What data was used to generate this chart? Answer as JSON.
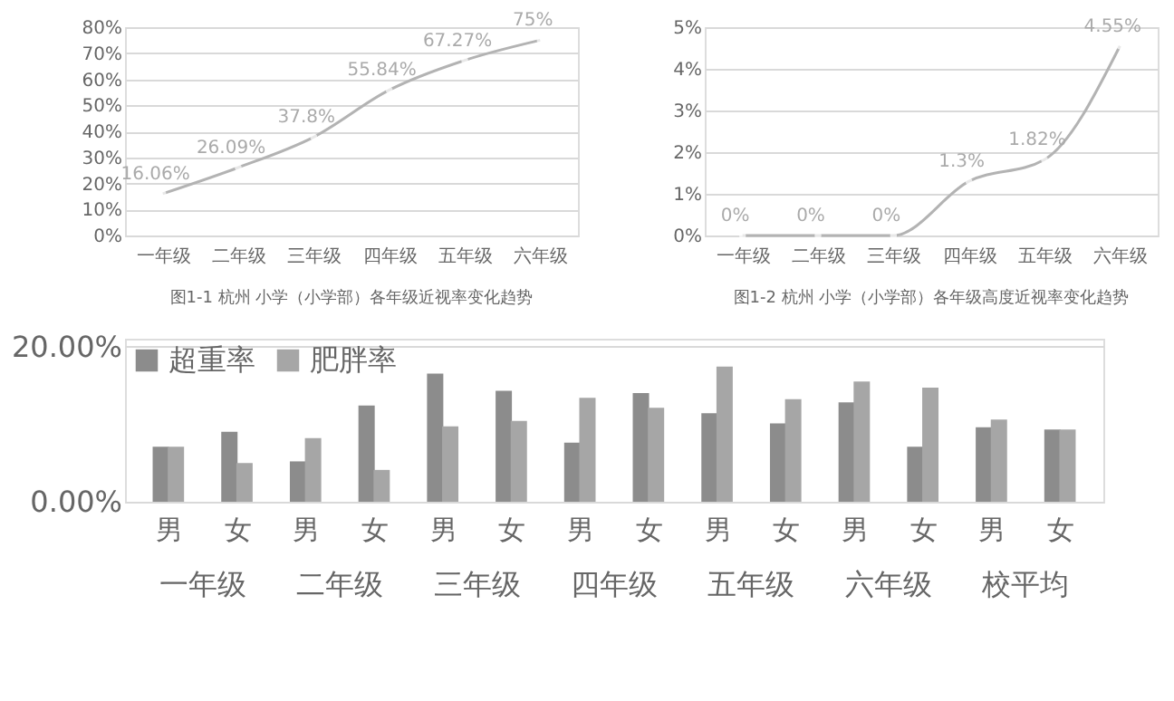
{
  "chart_data": [
    {
      "type": "line",
      "title": "图1-1 杭州 小学（小学部）各年级近视率变化趋势",
      "categories": [
        "一年级",
        "二年级",
        "三年级",
        "四年级",
        "五年级",
        "六年级"
      ],
      "series": [
        {
          "color": "#b3b3b3",
          "values": [
            16.06,
            26.09,
            37.8,
            55.84,
            67.27,
            75
          ],
          "value_labels": [
            "16.06%",
            "26.09%",
            "37.8%",
            "55.84%",
            "67.27%",
            "75%"
          ]
        }
      ],
      "ylim": [
        0,
        80
      ],
      "yticks": [
        {
          "value": 0,
          "label": "0%"
        },
        {
          "value": 10,
          "label": "10%"
        },
        {
          "value": 20,
          "label": "20%"
        },
        {
          "value": 30,
          "label": "30%"
        },
        {
          "value": 40,
          "label": "40%"
        },
        {
          "value": 50,
          "label": "50%"
        },
        {
          "value": 60,
          "label": "60%"
        },
        {
          "value": 70,
          "label": "70%"
        },
        {
          "value": 80,
          "label": "80%"
        }
      ],
      "grid": "y",
      "marker": "circle"
    },
    {
      "type": "line",
      "title": "图1-2 杭州 小学（小学部）各年级高度近视率变化趋势",
      "categories": [
        "一年级",
        "二年级",
        "三年级",
        "四年级",
        "五年级",
        "六年级"
      ],
      "series": [
        {
          "color": "#b3b3b3",
          "values": [
            0,
            0,
            0,
            1.3,
            1.82,
            4.55
          ],
          "value_labels": [
            "0%",
            "0%",
            "0%",
            "1.3%",
            "1.82%",
            "4.55%"
          ]
        }
      ],
      "ylim": [
        0,
        5
      ],
      "yticks": [
        {
          "value": 0,
          "label": "0%"
        },
        {
          "value": 1,
          "label": "1%"
        },
        {
          "value": 2,
          "label": "2%"
        },
        {
          "value": 3,
          "label": "3%"
        },
        {
          "value": 4,
          "label": "4%"
        },
        {
          "value": 5,
          "label": "5%"
        }
      ],
      "grid": "y",
      "marker": "circle"
    },
    {
      "type": "bar",
      "categories": [
        "男",
        "女",
        "男",
        "女",
        "男",
        "女",
        "男",
        "女",
        "男",
        "女",
        "男",
        "女",
        "男",
        "女"
      ],
      "annotations": [
        "一年级",
        "二年级",
        "三年级",
        "四年级",
        "五年级",
        "六年级",
        "校平均"
      ],
      "series": [
        {
          "name": "超重率",
          "color": "#8c8c8c",
          "values": [
            7.1,
            9.0,
            5.2,
            12.4,
            16.5,
            14.3,
            7.6,
            14.0,
            11.4,
            10.1,
            12.8,
            7.1,
            9.6,
            9.3
          ]
        },
        {
          "name": "肥胖率",
          "color": "#a6a6a6",
          "values": [
            7.1,
            5.0,
            8.2,
            4.1,
            9.7,
            10.4,
            13.4,
            12.1,
            17.4,
            13.2,
            15.5,
            14.7,
            10.6,
            9.3
          ]
        }
      ],
      "ylim": [
        0,
        21
      ],
      "yticks": [
        {
          "value": 0,
          "label": "0.00%"
        },
        {
          "value": 20,
          "label": "20.00%"
        }
      ],
      "grid": "y",
      "legend": "top left"
    }
  ]
}
